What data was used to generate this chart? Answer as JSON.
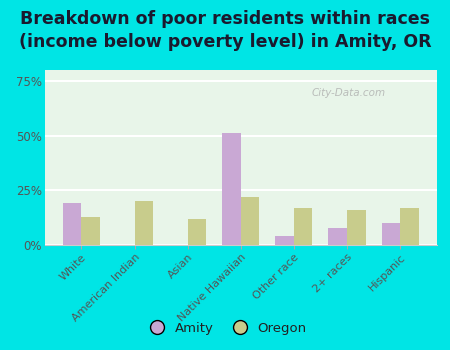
{
  "title": "Breakdown of poor residents within races\n(income below poverty level) in Amity, OR",
  "categories": [
    "White",
    "American Indian",
    "Asian",
    "Native Hawaiian",
    "Other race",
    "2+ races",
    "Hispanic"
  ],
  "amity_values": [
    19,
    0,
    0,
    51,
    4,
    8,
    10
  ],
  "oregon_values": [
    13,
    20,
    12,
    22,
    17,
    16,
    17
  ],
  "amity_color": "#c9a8d4",
  "oregon_color": "#c8cc8c",
  "outer_background": "#00e5e5",
  "plot_bg_color": "#e8f5e9",
  "ylim": [
    0,
    80
  ],
  "yticks": [
    0,
    25,
    50,
    75
  ],
  "ytick_labels": [
    "0%",
    "25%",
    "50%",
    "75%"
  ],
  "title_fontsize": 12.5,
  "legend_labels": [
    "Amity",
    "Oregon"
  ],
  "bar_width": 0.35,
  "watermark": "City-Data.com",
  "watermark_color": "#aaaaaa"
}
